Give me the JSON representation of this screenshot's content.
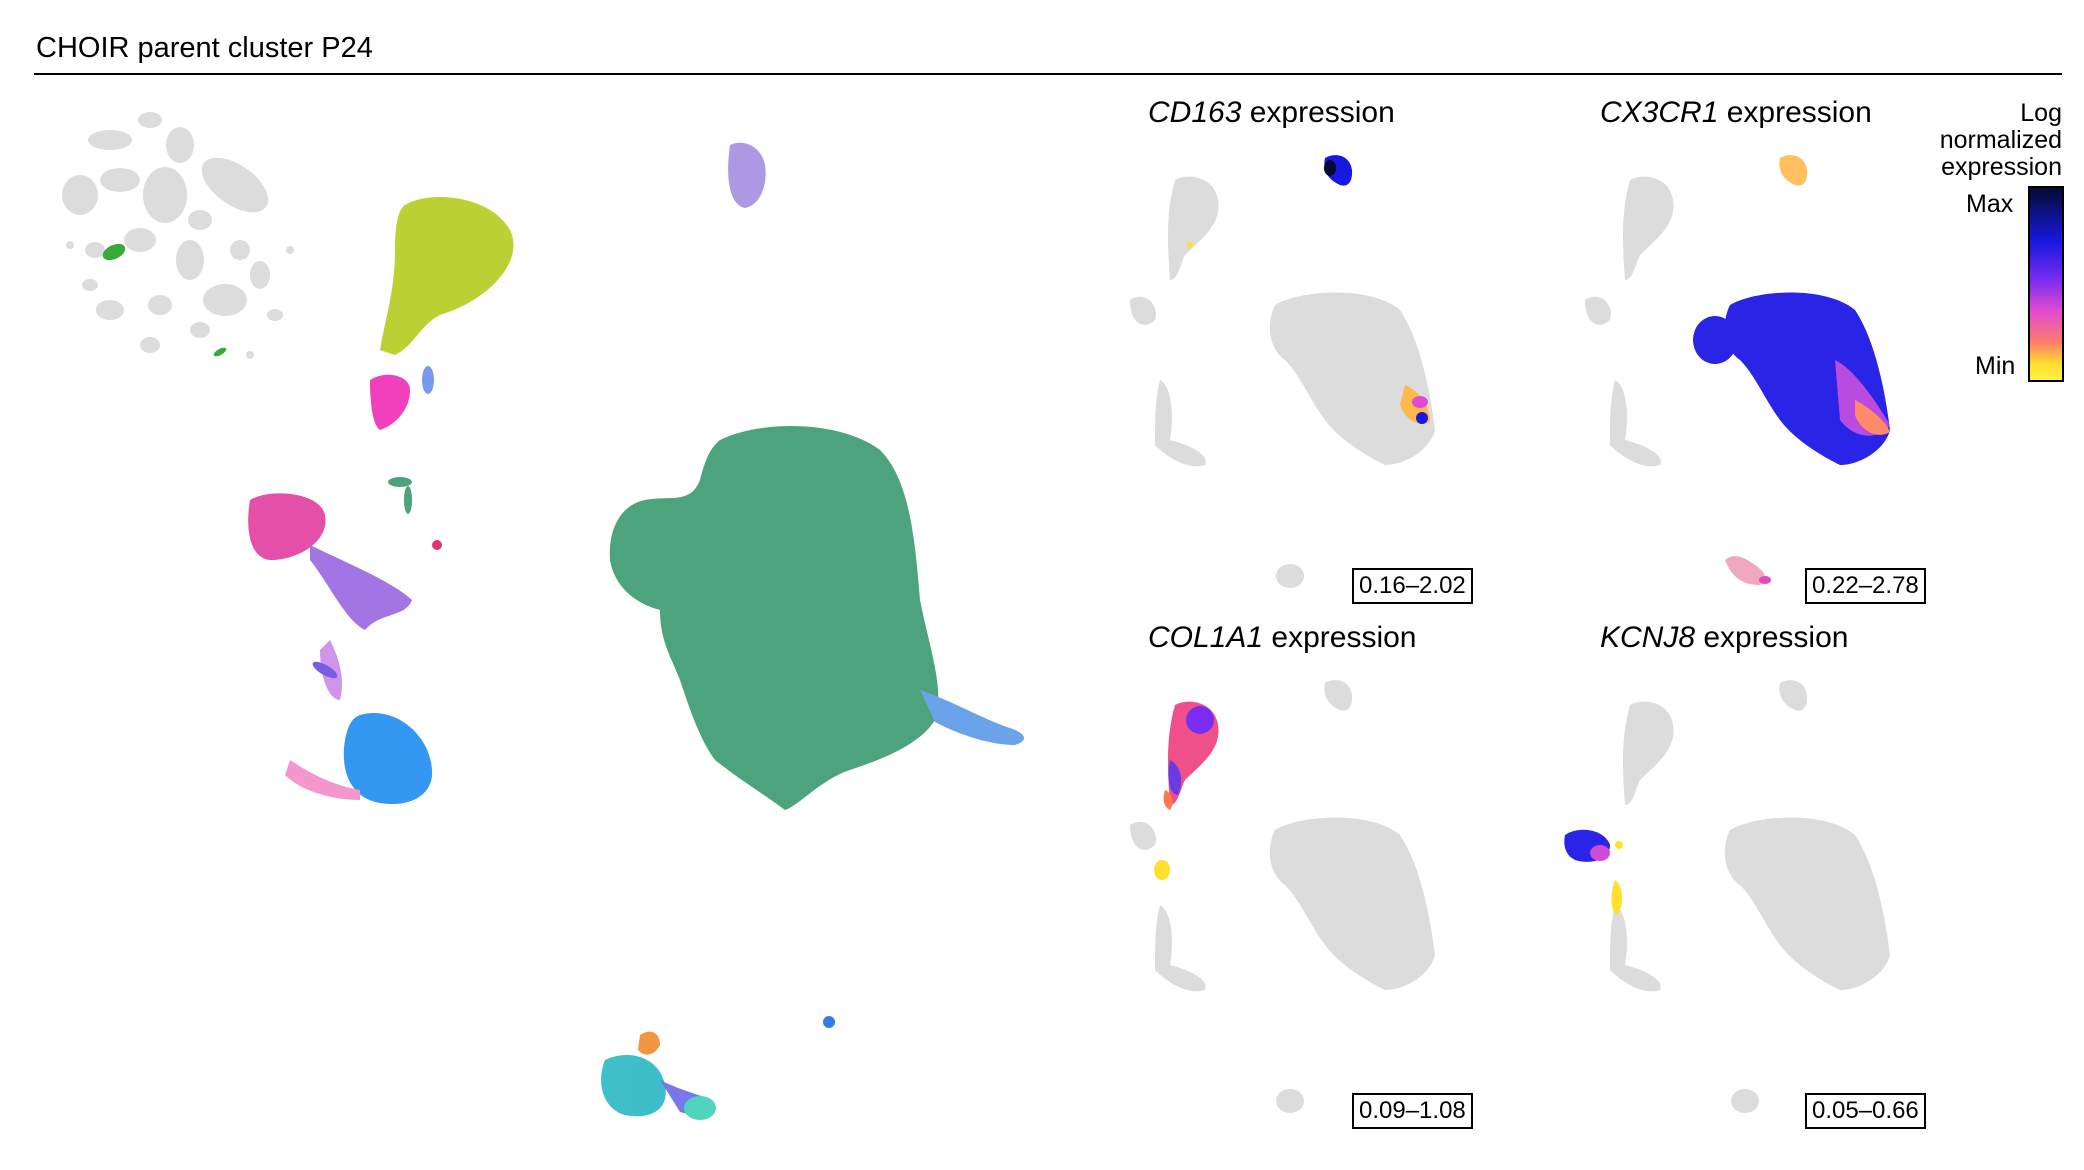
{
  "figure": {
    "title": "CHOIR parent cluster P24"
  },
  "panels": [
    {
      "gene": "CD163",
      "suffix": " expression",
      "range": "0.16–2.02"
    },
    {
      "gene": "CX3CR1",
      "suffix": " expression",
      "range": "0.22–2.78"
    },
    {
      "gene": "COL1A1",
      "suffix": " expression",
      "range": "0.09–1.08"
    },
    {
      "gene": "KCNJ8",
      "suffix": " expression",
      "range": "0.05–0.66"
    }
  ],
  "legend": {
    "title_line1": "Log",
    "title_line2": "normalized",
    "title_line3": "expression",
    "max_label": "Max",
    "min_label": "Min"
  },
  "colors": {
    "background_cells": "#dcdcdc",
    "main_cluster": "#3a9a6e",
    "lime_cluster": "#b4cc1e",
    "magenta_cluster": "#e23c9e",
    "purple_cluster": "#9a66e0",
    "blue_cluster": "#1e8cf0",
    "pink_cluster": "#f28cc8",
    "lavender_cluster": "#a48ee0",
    "teal_cluster": "#2ab8c4",
    "orange_cluster": "#f08a2c",
    "highlight_cluster": "#3aa83a",
    "expr_max": "#050a35",
    "expr_high": "#1818e0",
    "expr_mid": "#e14bd0",
    "expr_min": "#ffe02a"
  }
}
